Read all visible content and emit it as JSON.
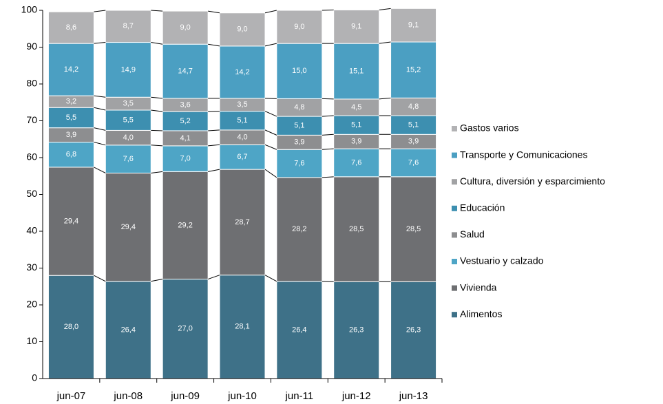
{
  "chart_data": {
    "type": "stacked_bar",
    "categories": [
      "jun-07",
      "jun-08",
      "jun-09",
      "jun-10",
      "jun-11",
      "jun-12",
      "jun-13"
    ],
    "series": [
      {
        "name": "Alimentos",
        "color": "#3e7188",
        "values": [
          28.0,
          26.4,
          27.0,
          28.1,
          26.4,
          26.3,
          26.3
        ],
        "value_labels": [
          "28,0",
          "26,4",
          "27,0",
          "28,1",
          "26,4",
          "26,3",
          "26,3"
        ]
      },
      {
        "name": "Vivienda",
        "color": "#6e6f72",
        "values": [
          29.4,
          29.4,
          29.2,
          28.7,
          28.2,
          28.5,
          28.5
        ],
        "value_labels": [
          "29,4",
          "29,4",
          "29,2",
          "28,7",
          "28,2",
          "28,5",
          "28,5"
        ]
      },
      {
        "name": "Vestuario y calzado",
        "color": "#4ea5c6",
        "values": [
          6.8,
          7.6,
          7.0,
          6.7,
          7.6,
          7.6,
          7.6
        ],
        "value_labels": [
          "6,8",
          "7,6",
          "7,0",
          "6,7",
          "7,6",
          "7,6",
          "7,6"
        ]
      },
      {
        "name": "Salud",
        "color": "#8d8e90",
        "values": [
          3.9,
          4.0,
          4.1,
          4.0,
          3.9,
          3.9,
          3.9
        ],
        "value_labels": [
          "3,9",
          "4,0",
          "4,1",
          "4,0",
          "3,9",
          "3,9",
          "3,9"
        ]
      },
      {
        "name": "Educación",
        "color": "#3d8fb0",
        "values": [
          5.5,
          5.5,
          5.2,
          5.1,
          5.1,
          5.1,
          5.1
        ],
        "value_labels": [
          "5,5",
          "5,5",
          "5,2",
          "5,1",
          "5,1",
          "5,1",
          "5,1"
        ]
      },
      {
        "name": "Cultura, diversión y esparcimiento",
        "color": "#a1a2a4",
        "values": [
          3.2,
          3.5,
          3.6,
          3.5,
          4.8,
          4.5,
          4.8
        ],
        "value_labels": [
          "3,2",
          "3,5",
          "3,6",
          "3,5",
          "4,8",
          "4,5",
          "4,8"
        ]
      },
      {
        "name": "Transporte y Comunicaciones",
        "color": "#4b9fc2",
        "values": [
          14.2,
          14.9,
          14.7,
          14.2,
          15.0,
          15.1,
          15.2
        ],
        "value_labels": [
          "14,2",
          "14,9",
          "14,7",
          "14,2",
          "15,0",
          "15,1",
          "15,2"
        ]
      },
      {
        "name": "Gastos varios",
        "color": "#b2b2b4",
        "values": [
          8.6,
          8.7,
          9.0,
          9.0,
          9.0,
          9.1,
          9.1
        ],
        "value_labels": [
          "8,6",
          "8,7",
          "9,0",
          "9,0",
          "9,0",
          "9,1",
          "9,1"
        ]
      }
    ],
    "ylim": [
      0,
      100
    ],
    "yticks": [
      0,
      10,
      20,
      30,
      40,
      50,
      60,
      70,
      80,
      90,
      100
    ],
    "legend": "right"
  }
}
